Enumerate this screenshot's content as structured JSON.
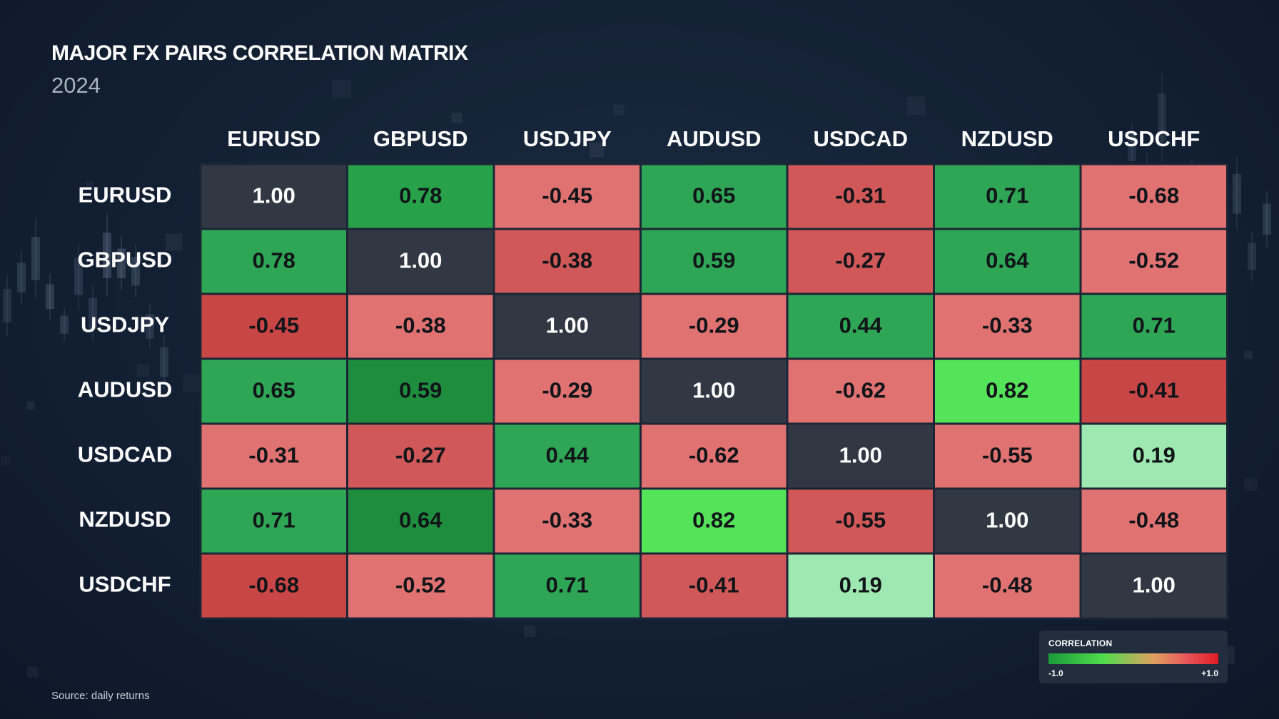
{
  "chart_data": {
    "type": "heatmap",
    "title": "MAJOR FX PAIRS CORRELATION MATRIX",
    "subtitle": "2024",
    "columns": [
      "EURUSD",
      "GBPUSD",
      "USDJPY",
      "AUDUSD",
      "USDCAD",
      "NZDUSD",
      "USDCHF"
    ],
    "rows": [
      "EURUSD",
      "GBPUSD",
      "USDJPY",
      "AUDUSD",
      "USDCAD",
      "NZDUSD",
      "USDCHF"
    ],
    "values": [
      [
        "1.00",
        "0.78",
        "-0.45",
        "0.65",
        "-0.31",
        "0.71",
        "-0.68"
      ],
      [
        "0.78",
        "1.00",
        "-0.38",
        "0.59",
        "-0.27",
        "0.64",
        "-0.52"
      ],
      [
        "-0.45",
        "-0.38",
        "1.00",
        "-0.29",
        "0.44",
        "-0.33",
        "0.71"
      ],
      [
        "0.65",
        "0.59",
        "-0.29",
        "1.00",
        "-0.62",
        "0.82",
        "-0.41"
      ],
      [
        "-0.31",
        "-0.27",
        "0.44",
        "-0.62",
        "1.00",
        "-0.55",
        "0.19"
      ],
      [
        "0.71",
        "0.64",
        "-0.33",
        "0.82",
        "-0.55",
        "1.00",
        "-0.48"
      ],
      [
        "-0.68",
        "-0.52",
        "0.71",
        "-0.41",
        "0.19",
        "-0.48",
        "1.00"
      ]
    ],
    "cell_colors": [
      [
        "#323843",
        "#27a24a",
        "#e07272",
        "#2ea655",
        "#d05858",
        "#2ea655",
        "#e07272"
      ],
      [
        "#2ea655",
        "#323843",
        "#d05858",
        "#2ea655",
        "#d05858",
        "#2ea655",
        "#e07272"
      ],
      [
        "#c94646",
        "#e07272",
        "#323843",
        "#e07272",
        "#2ea655",
        "#e07272",
        "#2ea655"
      ],
      [
        "#2ea655",
        "#1e8e3e",
        "#e07272",
        "#323843",
        "#e07272",
        "#55e35a",
        "#c94646"
      ],
      [
        "#e07272",
        "#d05858",
        "#2ea655",
        "#e07272",
        "#323843",
        "#e07272",
        "#9ee8b1"
      ],
      [
        "#2ea655",
        "#1e8e3e",
        "#e07272",
        "#55e35a",
        "#d05858",
        "#323843",
        "#e07272"
      ],
      [
        "#c94646",
        "#e07272",
        "#2ea655",
        "#d05858",
        "#9ee8b1",
        "#e07272",
        "#323843"
      ]
    ],
    "legend": {
      "title": "CORRELATION",
      "min_label": "-1.0",
      "max_label": "+1.0",
      "placement": "bottom-right"
    },
    "source": "Source: daily returns"
  }
}
